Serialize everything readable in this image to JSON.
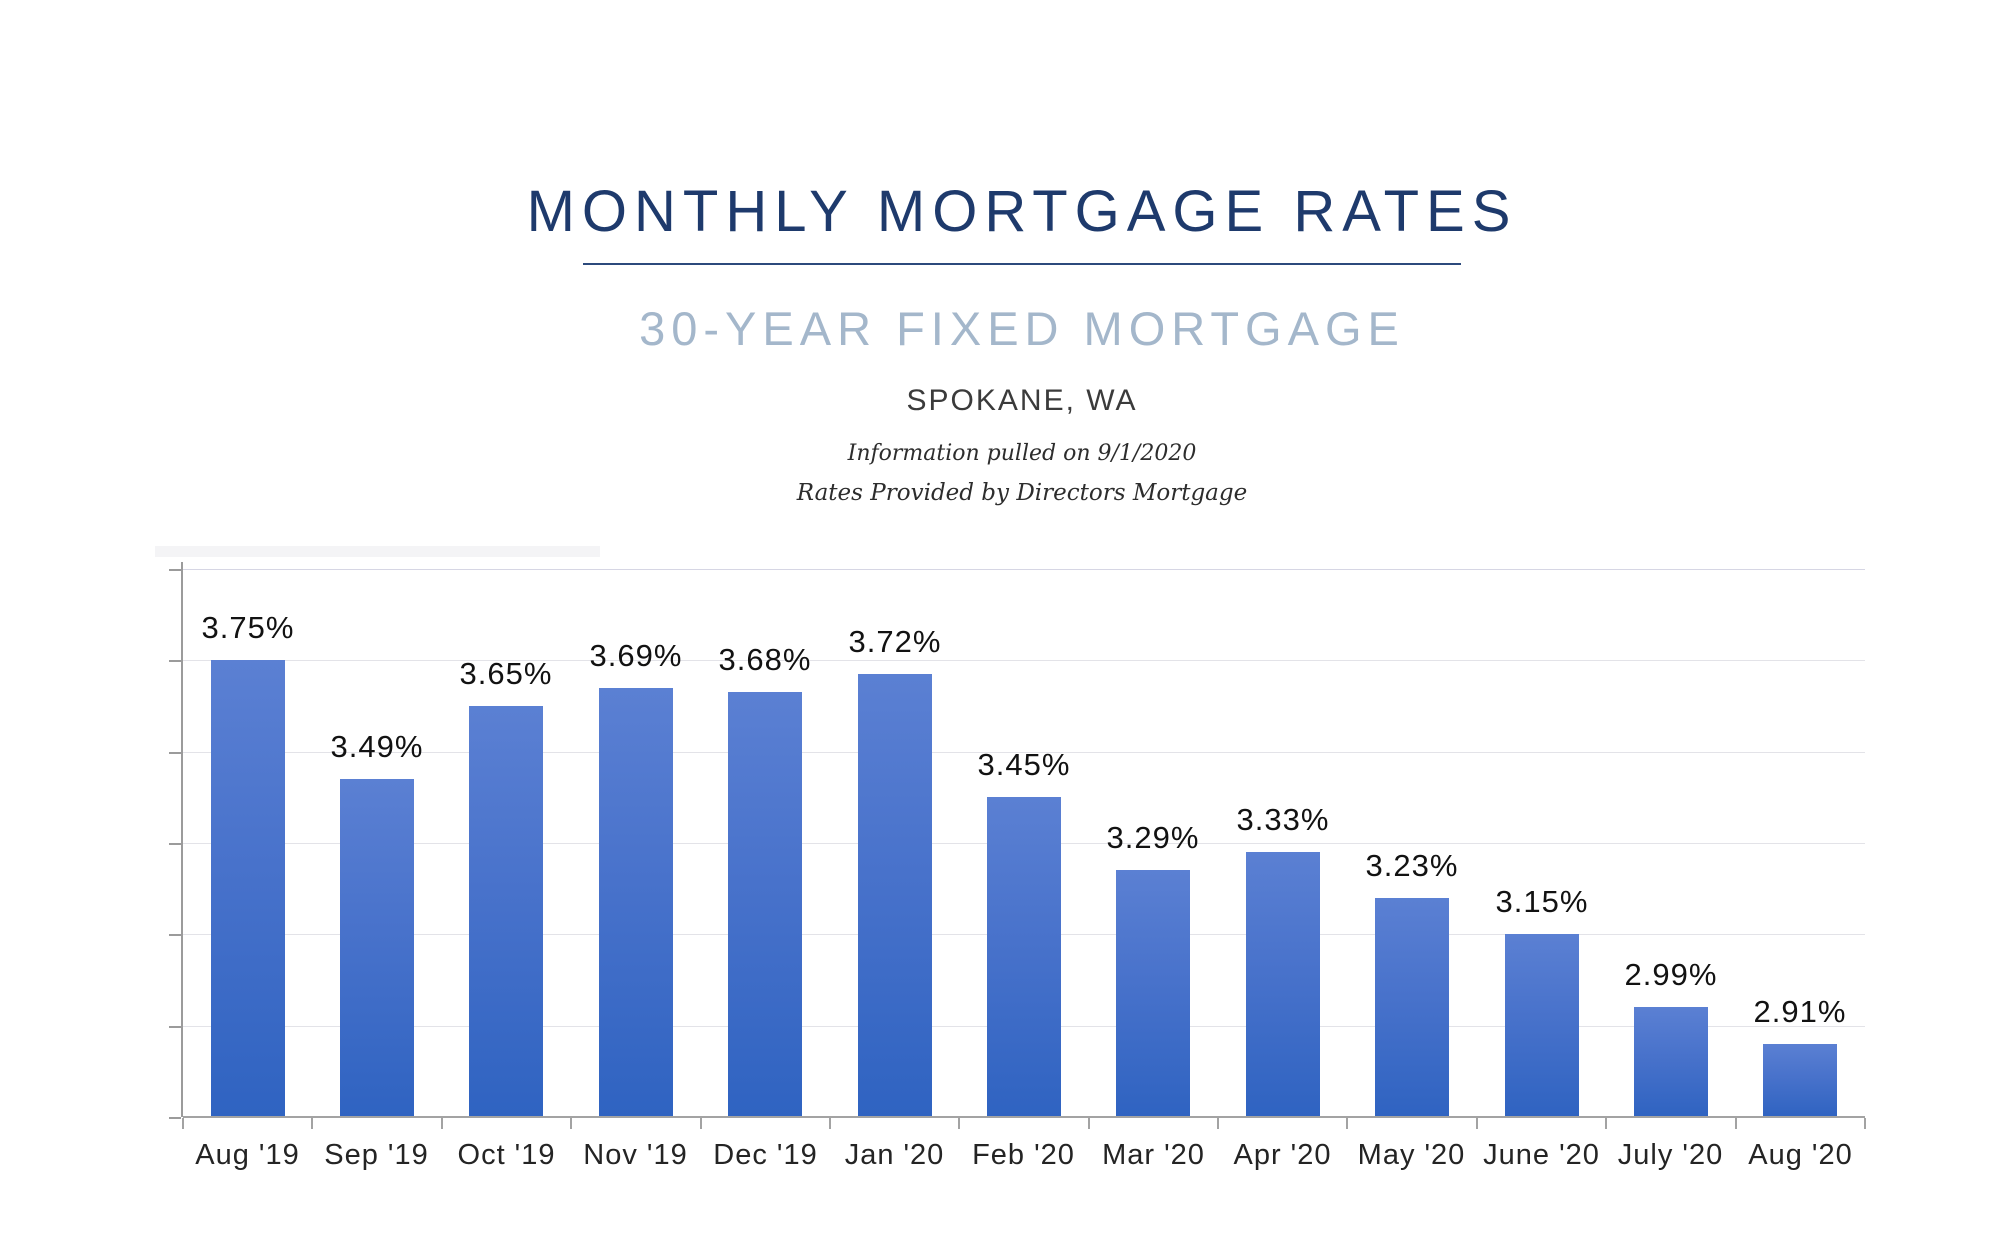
{
  "header": {
    "title": "MONTHLY MORTGAGE RATES",
    "subtitle": "30-YEAR FIXED MORTGAGE",
    "location": "SPOKANE, WA",
    "info_line1": "Information pulled on 9/1/2020",
    "info_line2": "Rates Provided by Directors Mortgage"
  },
  "colors": {
    "title_navy": "#1e3a6c",
    "subtitle_blue_gray": "#a4b7cb",
    "bar_gradient_top": "#5b80d3",
    "bar_gradient_bottom": "#2f63c1",
    "gridline_gray": "#e3e3e8",
    "axis_gray": "#9b9b9b",
    "label_black": "#121212"
  },
  "chart_data": {
    "type": "bar",
    "title": "MONTHLY MORTGAGE RATES",
    "subtitle": "30-YEAR FIXED MORTGAGE",
    "series_name": "30-Year Fixed Mortgage Rate",
    "categories": [
      "Aug '19",
      "Sep '19",
      "Oct '19",
      "Nov '19",
      "Dec '19",
      "Jan '20",
      "Feb '20",
      "Mar '20",
      "Apr '20",
      "May '20",
      "June '20",
      "July '20",
      "Aug '20"
    ],
    "values": [
      3.75,
      3.49,
      3.65,
      3.69,
      3.68,
      3.72,
      3.45,
      3.29,
      3.33,
      3.23,
      3.15,
      2.99,
      2.91
    ],
    "value_labels": [
      "3.75%",
      "3.49%",
      "3.65%",
      "3.69%",
      "3.68%",
      "3.72%",
      "3.45%",
      "3.29%",
      "3.33%",
      "3.23%",
      "3.15%",
      "2.99%",
      "2.91%"
    ],
    "xlabel": "",
    "ylabel": "",
    "ylim": [
      2.75,
      3.95
    ],
    "ytick_step": 0.2,
    "ytick_labels_shown": false,
    "grid": true,
    "legend": false
  }
}
